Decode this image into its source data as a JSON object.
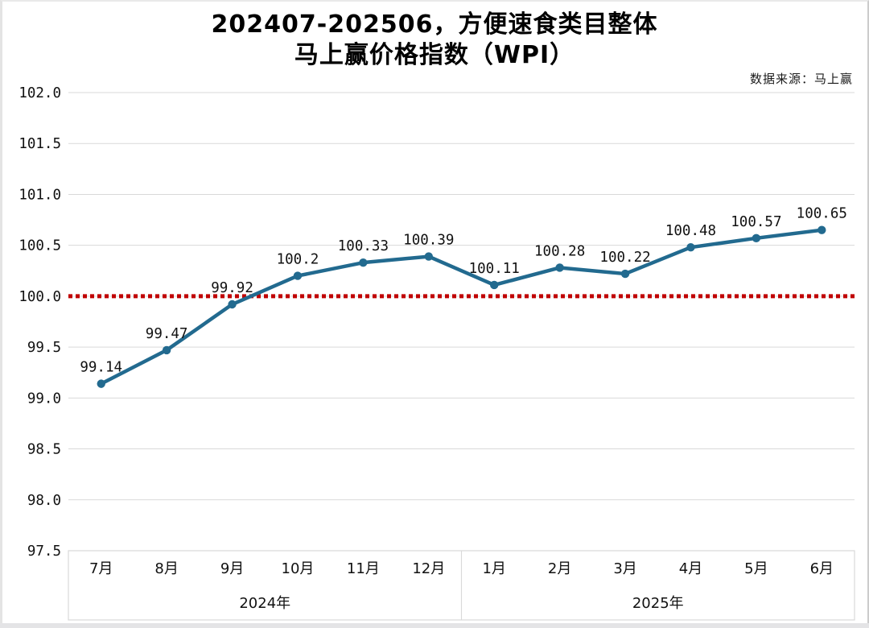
{
  "header": {
    "title_line1": "202407-202506，方便速食类目整体",
    "title_line2": "马上赢价格指数（WPI）",
    "source": "数据来源：马上赢"
  },
  "chart_data": {
    "type": "line",
    "title": "202407-202506，方便速食类目整体 马上赢价格指数（WPI）",
    "source": "数据来源：马上赢",
    "categories": [
      "7月",
      "8月",
      "9月",
      "10月",
      "11月",
      "12月",
      "1月",
      "2月",
      "3月",
      "4月",
      "5月",
      "6月"
    ],
    "year_groups": [
      {
        "label": "2024年",
        "span": 6
      },
      {
        "label": "2025年",
        "span": 6
      }
    ],
    "series": [
      {
        "name": "马上赢价格指数（WPI）",
        "values": [
          99.14,
          99.47,
          99.92,
          100.2,
          100.33,
          100.39,
          100.11,
          100.28,
          100.22,
          100.48,
          100.57,
          100.65
        ],
        "labels": [
          "99.14",
          "99.47",
          "99.92",
          "100.2",
          "100.33",
          "100.39",
          "100.11",
          "100.28",
          "100.22",
          "100.48",
          "100.57",
          "100.65"
        ],
        "color": "#226a8f"
      }
    ],
    "reference_line": {
      "value": 100.0,
      "style": "dotted",
      "color": "#c00000"
    },
    "ylim": [
      97.5,
      102.0
    ],
    "ytick_step": 0.5,
    "yticks": [
      "102.0",
      "101.5",
      "101.0",
      "100.5",
      "100.0",
      "99.5",
      "99.0",
      "98.5",
      "98.0",
      "97.5"
    ],
    "grid": true,
    "grid_color": "#d9d9d9",
    "legend": "none",
    "xlabel": "",
    "ylabel": ""
  }
}
